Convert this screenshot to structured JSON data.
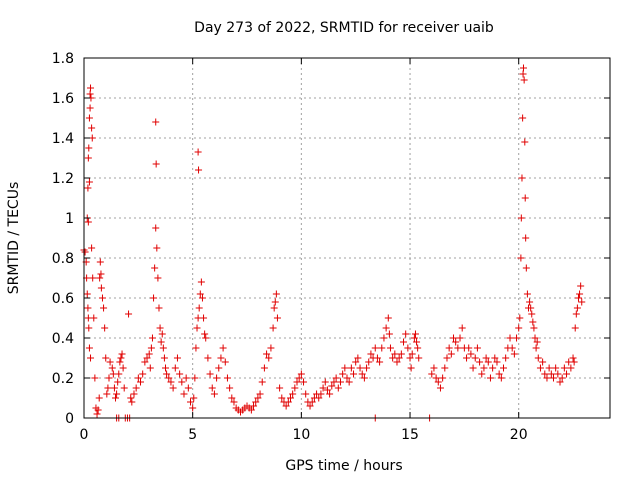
{
  "chart_data": {
    "type": "scatter",
    "title": "Day 273 of 2022, SRMTID for receiver uaib",
    "xlabel": "GPS time / hours",
    "ylabel": "SRMTID / TECUs",
    "xlim": [
      0,
      24.2
    ],
    "ylim": [
      0,
      1.8
    ],
    "xticks": [
      0,
      5,
      10,
      15,
      20
    ],
    "xtick_labels": [
      "0",
      "5",
      "10",
      "15",
      "20"
    ],
    "yticks": [
      0,
      0.2,
      0.4,
      0.6,
      0.8,
      1.0,
      1.2,
      1.4,
      1.6,
      1.8
    ],
    "ytick_labels": [
      "0",
      "0.2",
      "0.4",
      "0.6",
      "0.8",
      "1",
      "1.2",
      "1.4",
      "1.6",
      "1.8"
    ],
    "grid": true,
    "marker": "+",
    "marker_color": "#e00000",
    "series": [
      {
        "name": "SRMTID",
        "points": [
          [
            0.0,
            0.84
          ],
          [
            0.05,
            0.83
          ],
          [
            0.1,
            0.78
          ],
          [
            0.12,
            0.7
          ],
          [
            0.15,
            0.62
          ],
          [
            0.18,
            0.55
          ],
          [
            0.2,
            0.5
          ],
          [
            0.22,
            0.45
          ],
          [
            0.25,
            0.35
          ],
          [
            0.3,
            0.3
          ],
          [
            0.15,
            1.0
          ],
          [
            0.18,
            1.15
          ],
          [
            0.2,
            1.3
          ],
          [
            0.22,
            1.35
          ],
          [
            0.25,
            1.5
          ],
          [
            0.28,
            1.62
          ],
          [
            0.3,
            1.65
          ],
          [
            0.32,
            1.6
          ],
          [
            0.28,
            1.55
          ],
          [
            0.35,
            1.45
          ],
          [
            0.38,
            1.4
          ],
          [
            0.25,
            1.18
          ],
          [
            0.2,
            0.98
          ],
          [
            0.35,
            0.85
          ],
          [
            0.4,
            0.7
          ],
          [
            0.45,
            0.5
          ],
          [
            0.5,
            0.2
          ],
          [
            0.55,
            0.05
          ],
          [
            0.6,
            0.02
          ],
          [
            0.65,
            0.04
          ],
          [
            0.7,
            0.1
          ],
          [
            0.72,
            0.7
          ],
          [
            0.75,
            0.78
          ],
          [
            0.78,
            0.72
          ],
          [
            0.8,
            0.65
          ],
          [
            0.85,
            0.6
          ],
          [
            0.9,
            0.55
          ],
          [
            0.95,
            0.45
          ],
          [
            1.0,
            0.3
          ],
          [
            1.05,
            0.12
          ],
          [
            1.1,
            0.15
          ],
          [
            1.15,
            0.2
          ],
          [
            1.2,
            0.28
          ],
          [
            1.3,
            0.25
          ],
          [
            1.35,
            0.22
          ],
          [
            1.4,
            0.15
          ],
          [
            1.45,
            0.1
          ],
          [
            1.5,
            0.12
          ],
          [
            1.55,
            0.18
          ],
          [
            1.6,
            0.22
          ],
          [
            1.65,
            0.28
          ],
          [
            1.7,
            0.3
          ],
          [
            1.75,
            0.32
          ],
          [
            1.8,
            0.25
          ],
          [
            1.85,
            0.15
          ],
          [
            1.5,
            0.0
          ],
          [
            1.6,
            0.0
          ],
          [
            1.9,
            0.0
          ],
          [
            2.0,
            0.0
          ],
          [
            2.1,
            0.0
          ],
          [
            2.05,
            0.52
          ],
          [
            2.15,
            0.1
          ],
          [
            2.2,
            0.08
          ],
          [
            2.3,
            0.12
          ],
          [
            2.4,
            0.15
          ],
          [
            2.5,
            0.2
          ],
          [
            2.6,
            0.18
          ],
          [
            2.7,
            0.22
          ],
          [
            2.8,
            0.28
          ],
          [
            2.9,
            0.3
          ],
          [
            3.0,
            0.32
          ],
          [
            3.05,
            0.25
          ],
          [
            3.1,
            0.35
          ],
          [
            3.15,
            0.4
          ],
          [
            3.2,
            0.6
          ],
          [
            3.25,
            0.75
          ],
          [
            3.3,
            0.95
          ],
          [
            3.35,
            0.85
          ],
          [
            3.4,
            0.7
          ],
          [
            3.45,
            0.55
          ],
          [
            3.5,
            0.45
          ],
          [
            3.55,
            0.38
          ],
          [
            3.6,
            0.42
          ],
          [
            3.65,
            0.35
          ],
          [
            3.7,
            0.3
          ],
          [
            3.75,
            0.25
          ],
          [
            3.8,
            0.22
          ],
          [
            3.3,
            1.48
          ],
          [
            3.32,
            1.27
          ],
          [
            3.9,
            0.2
          ],
          [
            4.0,
            0.18
          ],
          [
            4.1,
            0.15
          ],
          [
            4.2,
            0.25
          ],
          [
            4.3,
            0.3
          ],
          [
            4.4,
            0.22
          ],
          [
            4.5,
            0.18
          ],
          [
            4.6,
            0.12
          ],
          [
            4.7,
            0.2
          ],
          [
            4.8,
            0.15
          ],
          [
            4.9,
            0.08
          ],
          [
            5.0,
            0.05
          ],
          [
            5.05,
            0.1
          ],
          [
            5.1,
            0.2
          ],
          [
            5.15,
            0.35
          ],
          [
            5.2,
            0.45
          ],
          [
            5.25,
            0.5
          ],
          [
            5.3,
            0.55
          ],
          [
            5.35,
            0.62
          ],
          [
            5.4,
            0.68
          ],
          [
            5.45,
            0.6
          ],
          [
            5.5,
            0.5
          ],
          [
            5.55,
            0.42
          ],
          [
            5.6,
            0.4
          ],
          [
            5.25,
            1.33
          ],
          [
            5.27,
            1.24
          ],
          [
            5.7,
            0.3
          ],
          [
            5.8,
            0.22
          ],
          [
            5.9,
            0.15
          ],
          [
            6.0,
            0.12
          ],
          [
            6.1,
            0.2
          ],
          [
            6.2,
            0.25
          ],
          [
            6.3,
            0.3
          ],
          [
            6.4,
            0.35
          ],
          [
            6.5,
            0.28
          ],
          [
            6.6,
            0.2
          ],
          [
            6.7,
            0.15
          ],
          [
            6.8,
            0.1
          ],
          [
            6.9,
            0.08
          ],
          [
            7.0,
            0.05
          ],
          [
            7.1,
            0.04
          ],
          [
            7.2,
            0.03
          ],
          [
            7.3,
            0.04
          ],
          [
            7.4,
            0.05
          ],
          [
            7.5,
            0.06
          ],
          [
            7.6,
            0.05
          ],
          [
            7.7,
            0.04
          ],
          [
            7.8,
            0.06
          ],
          [
            7.9,
            0.08
          ],
          [
            8.0,
            0.1
          ],
          [
            8.1,
            0.12
          ],
          [
            8.2,
            0.18
          ],
          [
            8.3,
            0.25
          ],
          [
            8.4,
            0.32
          ],
          [
            8.5,
            0.3
          ],
          [
            8.6,
            0.35
          ],
          [
            8.7,
            0.45
          ],
          [
            8.75,
            0.55
          ],
          [
            8.8,
            0.58
          ],
          [
            8.85,
            0.62
          ],
          [
            8.9,
            0.5
          ],
          [
            9.0,
            0.15
          ],
          [
            9.1,
            0.1
          ],
          [
            9.2,
            0.08
          ],
          [
            9.3,
            0.06
          ],
          [
            9.4,
            0.08
          ],
          [
            9.5,
            0.1
          ],
          [
            9.6,
            0.12
          ],
          [
            9.7,
            0.15
          ],
          [
            9.8,
            0.18
          ],
          [
            9.9,
            0.2
          ],
          [
            10.0,
            0.22
          ],
          [
            10.1,
            0.18
          ],
          [
            10.2,
            0.12
          ],
          [
            10.3,
            0.08
          ],
          [
            10.4,
            0.06
          ],
          [
            10.5,
            0.08
          ],
          [
            10.6,
            0.1
          ],
          [
            10.7,
            0.12
          ],
          [
            10.8,
            0.1
          ],
          [
            10.9,
            0.12
          ],
          [
            11.0,
            0.15
          ],
          [
            11.1,
            0.18
          ],
          [
            11.2,
            0.14
          ],
          [
            11.3,
            0.12
          ],
          [
            11.4,
            0.16
          ],
          [
            11.5,
            0.18
          ],
          [
            11.6,
            0.2
          ],
          [
            11.7,
            0.15
          ],
          [
            11.8,
            0.18
          ],
          [
            11.9,
            0.22
          ],
          [
            12.0,
            0.25
          ],
          [
            12.1,
            0.2
          ],
          [
            12.2,
            0.18
          ],
          [
            12.3,
            0.25
          ],
          [
            12.4,
            0.22
          ],
          [
            12.5,
            0.28
          ],
          [
            12.6,
            0.3
          ],
          [
            12.7,
            0.25
          ],
          [
            12.8,
            0.22
          ],
          [
            12.9,
            0.2
          ],
          [
            13.0,
            0.25
          ],
          [
            13.1,
            0.28
          ],
          [
            13.2,
            0.32
          ],
          [
            13.3,
            0.3
          ],
          [
            13.4,
            0.35
          ],
          [
            13.5,
            0.3
          ],
          [
            13.4,
            0.0
          ],
          [
            13.6,
            0.28
          ],
          [
            13.7,
            0.35
          ],
          [
            13.8,
            0.4
          ],
          [
            13.9,
            0.45
          ],
          [
            14.0,
            0.5
          ],
          [
            14.05,
            0.42
          ],
          [
            14.1,
            0.35
          ],
          [
            14.2,
            0.3
          ],
          [
            14.3,
            0.32
          ],
          [
            14.4,
            0.28
          ],
          [
            14.5,
            0.3
          ],
          [
            14.6,
            0.32
          ],
          [
            14.7,
            0.38
          ],
          [
            14.8,
            0.42
          ],
          [
            14.9,
            0.35
          ],
          [
            15.0,
            0.3
          ],
          [
            15.05,
            0.25
          ],
          [
            15.1,
            0.32
          ],
          [
            15.2,
            0.4
          ],
          [
            15.25,
            0.42
          ],
          [
            15.3,
            0.38
          ],
          [
            15.35,
            0.35
          ],
          [
            15.4,
            0.3
          ],
          [
            15.9,
            0.0
          ],
          [
            16.0,
            0.22
          ],
          [
            16.1,
            0.25
          ],
          [
            16.2,
            0.2
          ],
          [
            16.3,
            0.18
          ],
          [
            16.4,
            0.15
          ],
          [
            16.5,
            0.2
          ],
          [
            16.6,
            0.25
          ],
          [
            16.7,
            0.3
          ],
          [
            16.8,
            0.35
          ],
          [
            16.9,
            0.32
          ],
          [
            17.0,
            0.4
          ],
          [
            17.1,
            0.38
          ],
          [
            17.2,
            0.35
          ],
          [
            17.3,
            0.4
          ],
          [
            17.4,
            0.45
          ],
          [
            17.5,
            0.35
          ],
          [
            17.6,
            0.3
          ],
          [
            17.7,
            0.35
          ],
          [
            17.8,
            0.32
          ],
          [
            17.9,
            0.25
          ],
          [
            18.0,
            0.3
          ],
          [
            18.1,
            0.35
          ],
          [
            18.2,
            0.28
          ],
          [
            18.3,
            0.22
          ],
          [
            18.4,
            0.25
          ],
          [
            18.5,
            0.3
          ],
          [
            18.6,
            0.28
          ],
          [
            18.7,
            0.2
          ],
          [
            18.8,
            0.25
          ],
          [
            18.9,
            0.3
          ],
          [
            19.0,
            0.28
          ],
          [
            19.1,
            0.22
          ],
          [
            19.2,
            0.2
          ],
          [
            19.3,
            0.25
          ],
          [
            19.4,
            0.3
          ],
          [
            19.5,
            0.35
          ],
          [
            19.6,
            0.4
          ],
          [
            19.7,
            0.35
          ],
          [
            19.8,
            0.32
          ],
          [
            19.9,
            0.4
          ],
          [
            20.0,
            0.45
          ],
          [
            20.05,
            0.5
          ],
          [
            20.1,
            0.8
          ],
          [
            20.12,
            1.0
          ],
          [
            20.15,
            1.2
          ],
          [
            20.18,
            1.5
          ],
          [
            20.2,
            1.72
          ],
          [
            20.22,
            1.75
          ],
          [
            20.25,
            1.69
          ],
          [
            20.28,
            1.38
          ],
          [
            20.3,
            1.1
          ],
          [
            20.32,
            0.9
          ],
          [
            20.35,
            0.75
          ],
          [
            20.4,
            0.62
          ],
          [
            20.45,
            0.55
          ],
          [
            20.5,
            0.58
          ],
          [
            20.55,
            0.55
          ],
          [
            20.6,
            0.52
          ],
          [
            20.65,
            0.48
          ],
          [
            20.7,
            0.45
          ],
          [
            20.75,
            0.4
          ],
          [
            20.8,
            0.35
          ],
          [
            20.85,
            0.38
          ],
          [
            20.9,
            0.3
          ],
          [
            21.0,
            0.25
          ],
          [
            21.1,
            0.28
          ],
          [
            21.2,
            0.22
          ],
          [
            21.3,
            0.2
          ],
          [
            21.4,
            0.25
          ],
          [
            21.5,
            0.22
          ],
          [
            21.6,
            0.2
          ],
          [
            21.7,
            0.25
          ],
          [
            21.8,
            0.22
          ],
          [
            21.9,
            0.18
          ],
          [
            22.0,
            0.2
          ],
          [
            22.1,
            0.25
          ],
          [
            22.2,
            0.22
          ],
          [
            22.3,
            0.28
          ],
          [
            22.4,
            0.25
          ],
          [
            22.5,
            0.3
          ],
          [
            22.55,
            0.28
          ],
          [
            22.6,
            0.45
          ],
          [
            22.65,
            0.52
          ],
          [
            22.7,
            0.55
          ],
          [
            22.75,
            0.6
          ],
          [
            22.8,
            0.62
          ],
          [
            22.85,
            0.66
          ],
          [
            22.9,
            0.58
          ]
        ]
      }
    ]
  }
}
